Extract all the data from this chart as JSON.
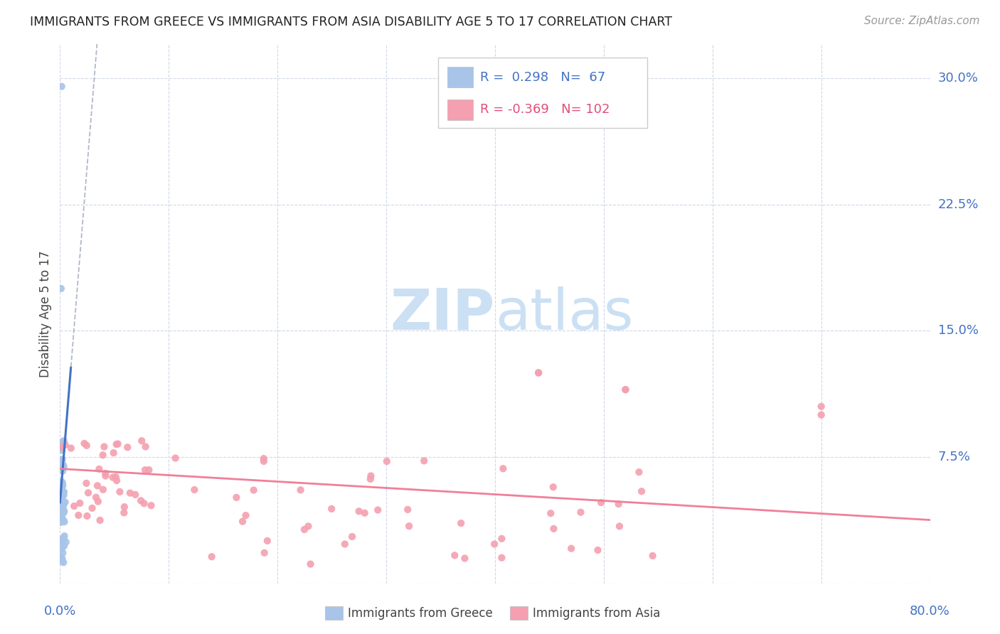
{
  "title": "IMMIGRANTS FROM GREECE VS IMMIGRANTS FROM ASIA DISABILITY AGE 5 TO 17 CORRELATION CHART",
  "source": "Source: ZipAtlas.com",
  "ylabel": "Disability Age 5 to 17",
  "xlim": [
    0.0,
    0.8
  ],
  "ylim": [
    0.0,
    0.32
  ],
  "xtick_positions": [
    0.0,
    0.1,
    0.2,
    0.3,
    0.4,
    0.5,
    0.6,
    0.7,
    0.8
  ],
  "ytick_positions": [
    0.0,
    0.075,
    0.15,
    0.225,
    0.3
  ],
  "ytick_labels": [
    "",
    "7.5%",
    "15.0%",
    "22.5%",
    "30.0%"
  ],
  "greece_color": "#a8c4e8",
  "asia_color": "#f4a0b0",
  "greece_line_color": "#4472c4",
  "asia_line_color": "#f08098",
  "dash_line_color": "#b0b8c8",
  "tick_label_color": "#4472c4",
  "grid_color": "#d0d8e8",
  "greece_R": 0.298,
  "greece_N": 67,
  "asia_R": -0.369,
  "asia_N": 102,
  "watermark_zip": "ZIP",
  "watermark_atlas": "atlas",
  "watermark_color": "#cce0f4",
  "legend_label_greece": "Immigrants from Greece",
  "legend_label_asia": "Immigrants from Asia"
}
